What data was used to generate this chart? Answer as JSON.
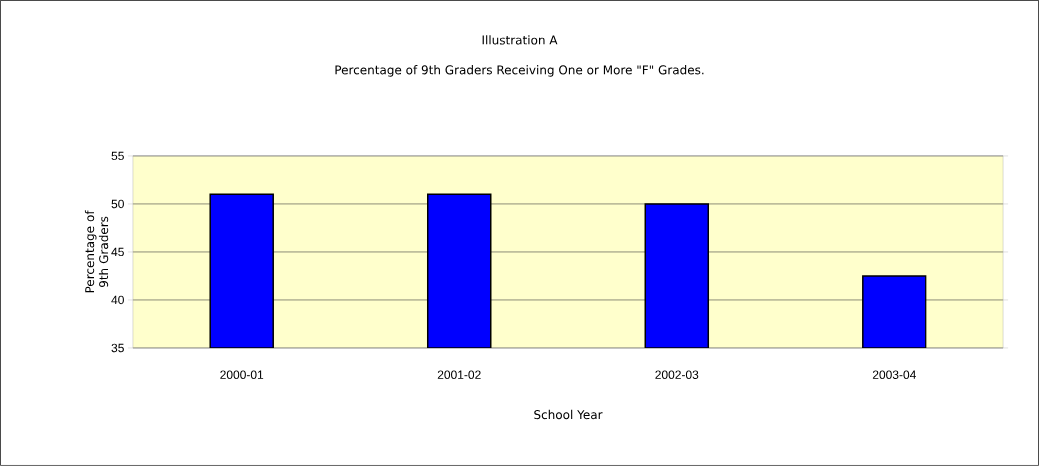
{
  "chart_data": {
    "type": "bar",
    "title": "Illustration A",
    "subtitle": "Percentage of 9th Graders Receiving One or More \"F\" Grades.",
    "xlabel": "School Year",
    "ylabel": "Percentage of 9th Graders",
    "categories": [
      "2000-01",
      "2001-02",
      "2002-03",
      "2003-04"
    ],
    "values": [
      51,
      51,
      50,
      42.5
    ],
    "color": "#0000ff",
    "ylim": [
      35,
      55
    ],
    "yticks": [
      35,
      40,
      45,
      50,
      55
    ],
    "grid": "y"
  }
}
